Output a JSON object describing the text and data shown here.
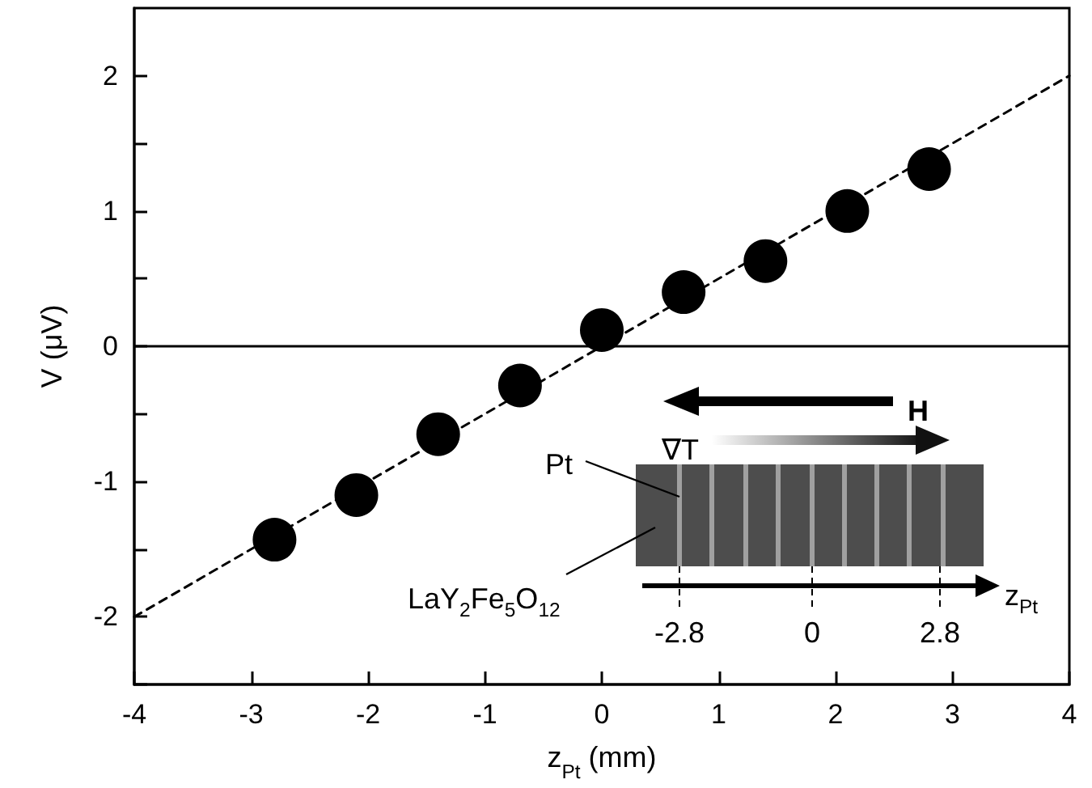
{
  "chart_data": {
    "type": "scatter",
    "xlabel": "z$_{Pt}$ (mm)",
    "ylabel": "V (μV)",
    "xlim": [
      -4,
      4
    ],
    "xticks": [
      -4,
      -3,
      -2,
      -1,
      0,
      1,
      2,
      3,
      4
    ],
    "ylim": [
      -2.5,
      2.5
    ],
    "yticks": [
      {
        "value": -2.5,
        "label": null
      },
      -2,
      {
        "value": -1.5,
        "label": null
      },
      -1,
      {
        "value": -0.5,
        "label": null
      },
      0,
      {
        "value": 0.5,
        "label": null
      },
      1,
      {
        "value": 1.5,
        "label": null
      },
      2
    ],
    "marker": "circle",
    "grid": false,
    "series": [
      {
        "type": "scatter",
        "color": "#000000",
        "x": [
          -2.8,
          -2.1,
          -1.4,
          -0.7,
          0,
          0.7,
          1.4,
          2.1,
          2.8
        ],
        "values": [
          -1.43,
          -1.1,
          -0.65,
          -0.29,
          0.12,
          0.4,
          0.63,
          1.0,
          1.31
        ]
      },
      {
        "type": "line",
        "color": "#000000",
        "line_style": "dashed",
        "marker": "none",
        "x": [
          -4,
          4
        ],
        "values": [
          -2.0,
          2.0
        ]
      }
    ],
    "ref_lines": [
      {
        "axis": "y",
        "value": 0,
        "label": null,
        "color": "#000000",
        "line_style": "solid"
      }
    ],
    "annotations": [
      "H",
      "∇T",
      "Pt",
      "LaY$_{2}$Fe$_{5}$O$_{12}$",
      "z$_{Pt}$",
      "-2.8",
      "0",
      "2.8"
    ]
  }
}
